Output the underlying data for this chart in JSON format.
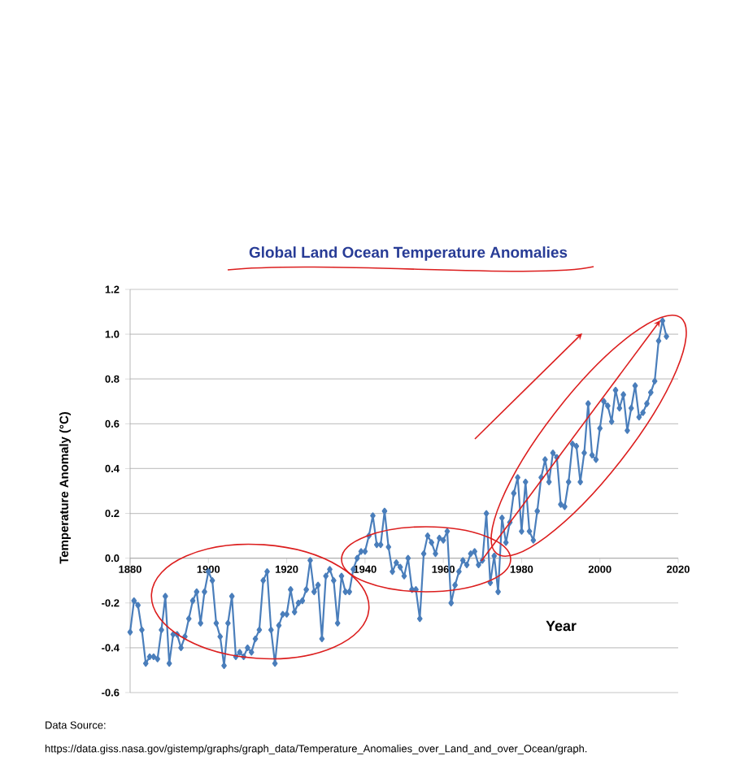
{
  "chart_data": {
    "type": "line",
    "title": "Global Land Ocean Temperature Anomalies",
    "xlabel": "Year",
    "ylabel": "Temperature Anomaly (°C)",
    "annotations": [
      "Data Source:",
      "https://data.giss.nasa.gov/gistemp/graphs/graph_data/Temperature_Anomalies_over_Land_and_over_Ocean/graph."
    ],
    "x": [
      1880,
      1881,
      1882,
      1883,
      1884,
      1885,
      1886,
      1887,
      1888,
      1889,
      1890,
      1891,
      1892,
      1893,
      1894,
      1895,
      1896,
      1897,
      1898,
      1899,
      1900,
      1901,
      1902,
      1903,
      1904,
      1905,
      1906,
      1907,
      1908,
      1909,
      1910,
      1911,
      1912,
      1913,
      1914,
      1915,
      1916,
      1917,
      1918,
      1919,
      1920,
      1921,
      1922,
      1923,
      1924,
      1925,
      1926,
      1927,
      1928,
      1929,
      1930,
      1931,
      1932,
      1933,
      1934,
      1935,
      1936,
      1937,
      1938,
      1939,
      1940,
      1941,
      1942,
      1943,
      1944,
      1945,
      1946,
      1947,
      1948,
      1949,
      1950,
      1951,
      1952,
      1953,
      1954,
      1955,
      1956,
      1957,
      1958,
      1959,
      1960,
      1961,
      1962,
      1963,
      1964,
      1965,
      1966,
      1967,
      1968,
      1969,
      1970,
      1971,
      1972,
      1973,
      1974,
      1975,
      1976,
      1977,
      1978,
      1979,
      1980,
      1981,
      1982,
      1983,
      1984,
      1985,
      1986,
      1987,
      1988,
      1989,
      1990,
      1991,
      1992,
      1993,
      1994,
      1995,
      1996,
      1997,
      1998,
      1999,
      2000,
      2001,
      2002,
      2003,
      2004,
      2005,
      2006,
      2007,
      2008,
      2009,
      2010,
      2011,
      2012,
      2013,
      2014,
      2015,
      2016,
      2017
    ],
    "series": [
      {
        "color": "#4a7ebb",
        "values": [
          -0.33,
          -0.19,
          -0.21,
          -0.32,
          -0.47,
          -0.44,
          -0.44,
          -0.45,
          -0.32,
          -0.17,
          -0.47,
          -0.34,
          -0.34,
          -0.4,
          -0.35,
          -0.27,
          -0.19,
          -0.15,
          -0.29,
          -0.15,
          -0.06,
          -0.1,
          -0.29,
          -0.35,
          -0.48,
          -0.29,
          -0.17,
          -0.44,
          -0.42,
          -0.44,
          -0.4,
          -0.42,
          -0.36,
          -0.32,
          -0.1,
          -0.06,
          -0.32,
          -0.47,
          -0.3,
          -0.25,
          -0.25,
          -0.14,
          -0.24,
          -0.2,
          -0.19,
          -0.14,
          -0.01,
          -0.15,
          -0.12,
          -0.36,
          -0.08,
          -0.05,
          -0.1,
          -0.29,
          -0.08,
          -0.15,
          -0.15,
          -0.05,
          0.0,
          0.03,
          0.03,
          0.1,
          0.19,
          0.06,
          0.06,
          0.21,
          0.05,
          -0.06,
          -0.02,
          -0.04,
          -0.08,
          0.0,
          -0.14,
          -0.14,
          -0.27,
          0.02,
          0.1,
          0.07,
          0.02,
          0.09,
          0.08,
          0.12,
          -0.2,
          -0.12,
          -0.06,
          -0.01,
          -0.03,
          0.02,
          0.03,
          -0.03,
          -0.01,
          0.2,
          -0.11,
          0.01,
          -0.15,
          0.18,
          0.07,
          0.16,
          0.29,
          0.36,
          0.12,
          0.34,
          0.12,
          0.08,
          0.21,
          0.36,
          0.44,
          0.34,
          0.47,
          0.45,
          0.24,
          0.23,
          0.34,
          0.51,
          0.5,
          0.34,
          0.47,
          0.69,
          0.46,
          0.44,
          0.58,
          0.7,
          0.68,
          0.61,
          0.75,
          0.67,
          0.73,
          0.57,
          0.67,
          0.77,
          0.63,
          0.65,
          0.69,
          0.74,
          0.79,
          0.97,
          1.06,
          0.99
        ]
      }
    ],
    "xlim": [
      1880,
      2020
    ],
    "xticks": [
      1880,
      1900,
      1920,
      1940,
      1960,
      1980,
      2000,
      2020
    ],
    "ylim": [
      -0.6,
      1.2
    ],
    "yticks": [
      {
        "value": -0.6,
        "label": "-0.6"
      },
      {
        "value": -0.4,
        "label": "-0.4"
      },
      {
        "value": -0.2,
        "label": "-0.2"
      },
      {
        "value": 0,
        "label": "0.0"
      },
      {
        "value": 0.2,
        "label": "0.2"
      },
      {
        "value": 0.4,
        "label": "0.4"
      },
      {
        "value": 0.6,
        "label": "0.6"
      },
      {
        "value": 0.8,
        "label": "0.8"
      },
      {
        "value": 1.0,
        "label": "1.0"
      },
      {
        "value": 1.2,
        "label": "1.2"
      }
    ],
    "grid": "y",
    "marker": "diamond",
    "line_style": "solid"
  }
}
